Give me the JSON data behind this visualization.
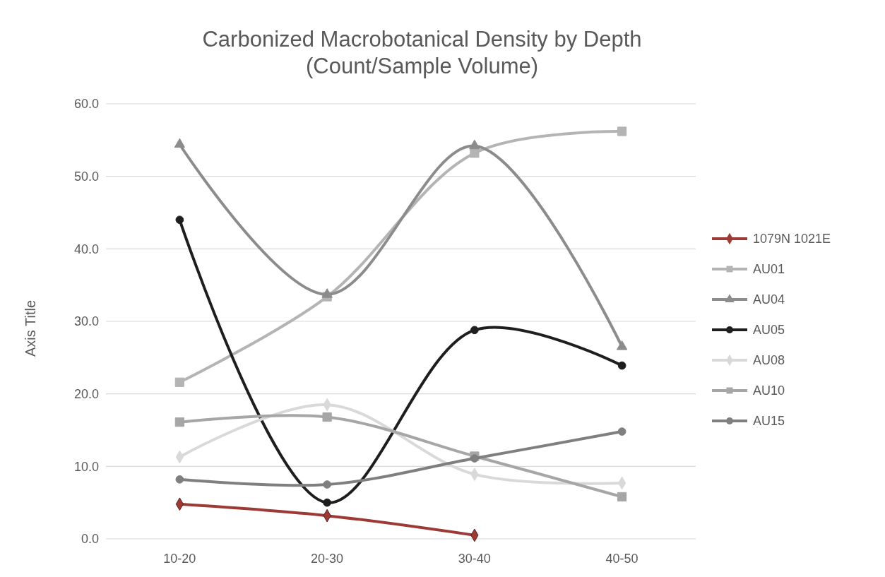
{
  "chart_data": {
    "type": "line",
    "title": "Carbonized Macrobotanical Density by Depth (Count/Sample Volume)",
    "ylabel": "Axis Title",
    "categories": [
      "10-20",
      "20-30",
      "30-40",
      "40-50"
    ],
    "ylim": [
      0,
      60
    ],
    "yticks": [
      {
        "value": 0,
        "label": "0.0"
      },
      {
        "value": 10,
        "label": "10.0"
      },
      {
        "value": 20,
        "label": "20.0"
      },
      {
        "value": 30,
        "label": "30.0"
      },
      {
        "value": 40,
        "label": "40.0"
      },
      {
        "value": 50,
        "label": "50.0"
      },
      {
        "value": 60,
        "label": "60.0"
      }
    ],
    "grid": "y",
    "legend": "right",
    "series": [
      {
        "name": "1079N 1021E",
        "color": "#9e3a35",
        "marker": "diamond",
        "values": [
          4.8,
          3.2,
          0.5,
          null
        ]
      },
      {
        "name": "AU01",
        "color": "#b4b4b4",
        "marker": "square",
        "values": [
          21.6,
          33.4,
          53.2,
          56.2
        ]
      },
      {
        "name": "AU04",
        "color": "#8c8c8c",
        "marker": "triangle",
        "values": [
          54.4,
          33.7,
          54.2,
          26.5
        ]
      },
      {
        "name": "AU05",
        "color": "#1e1e1e",
        "marker": "circle",
        "values": [
          44.0,
          5.0,
          28.8,
          23.9
        ]
      },
      {
        "name": "AU08",
        "color": "#d9d9d9",
        "marker": "diamond",
        "values": [
          11.3,
          18.5,
          8.9,
          7.7
        ]
      },
      {
        "name": "AU10",
        "color": "#a6a6a6",
        "marker": "square",
        "values": [
          16.1,
          16.8,
          11.4,
          5.8
        ]
      },
      {
        "name": "AU15",
        "color": "#7f7f7f",
        "marker": "circle",
        "values": [
          8.2,
          7.5,
          11.1,
          14.8
        ]
      }
    ]
  }
}
